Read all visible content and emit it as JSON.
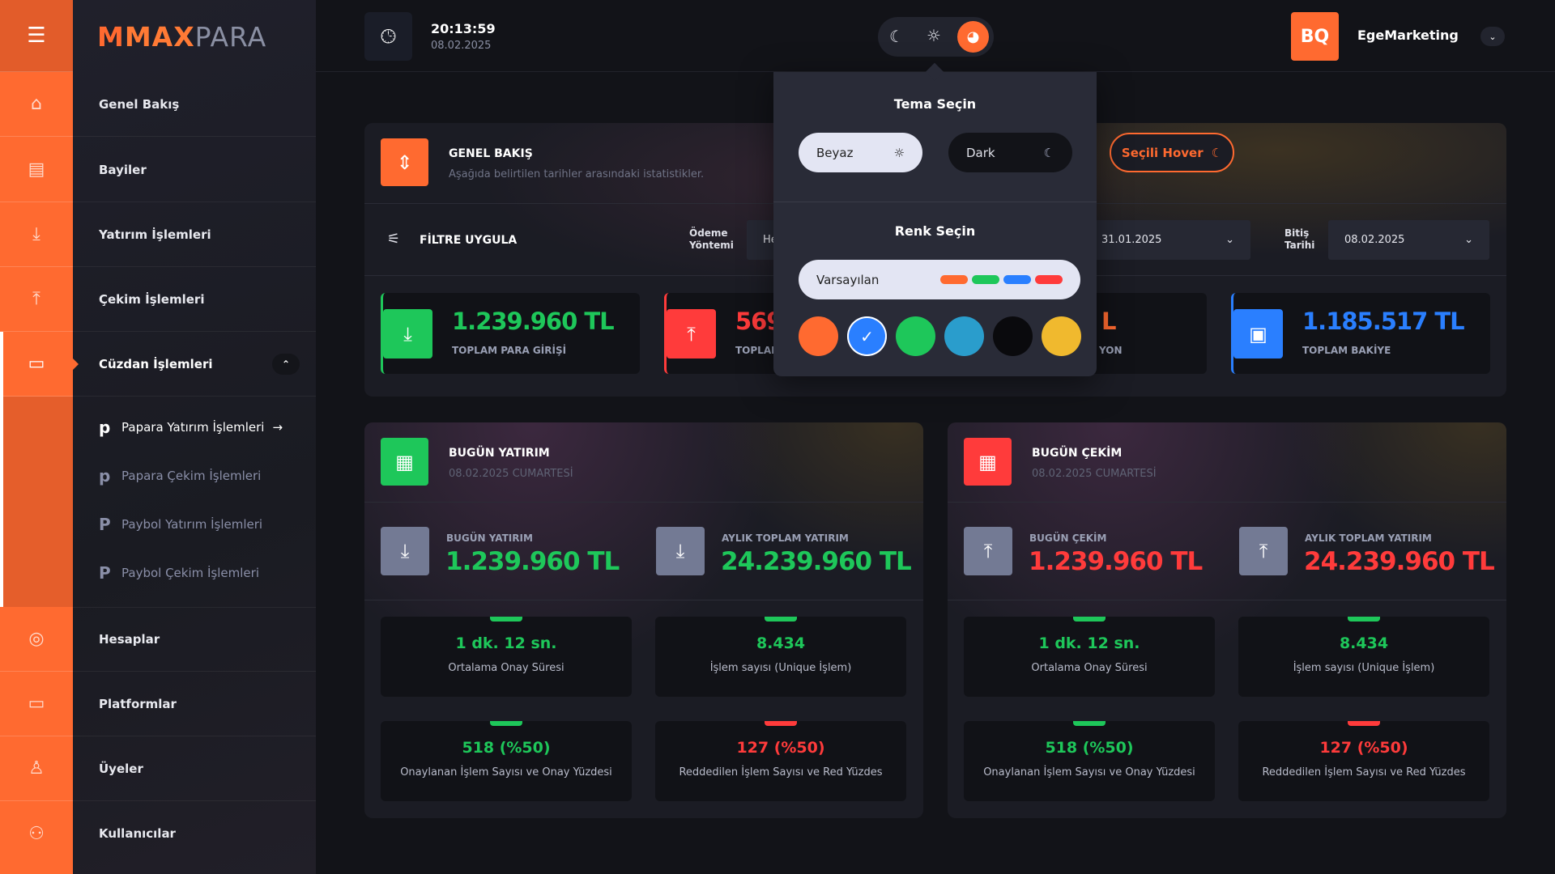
{
  "brand": {
    "logo_strong": "MAX",
    "logo_light": "PARA"
  },
  "clock": {
    "time": "20:13:59",
    "date": "08.02.2025"
  },
  "user": {
    "initials": "BQ",
    "name": "EgeMarketing"
  },
  "sidebar": {
    "items": [
      {
        "label": "Genel Bakış",
        "icon": "home-icon"
      },
      {
        "label": "Bayiler",
        "icon": "store-icon"
      },
      {
        "label": "Yatırım İşlemleri",
        "icon": "download-icon"
      },
      {
        "label": "Çekim İşlemleri",
        "icon": "upload-icon"
      },
      {
        "label": "Cüzdan İşlemleri",
        "icon": "wallet-icon",
        "active": true,
        "expanded": true
      },
      {
        "label": "Hesaplar",
        "icon": "user-circle-icon"
      },
      {
        "label": "Platformlar",
        "icon": "monitor-icon"
      },
      {
        "label": "Üyeler",
        "icon": "user-icon"
      },
      {
        "label": "Kullanıcılar",
        "icon": "users-icon"
      }
    ],
    "subitems": [
      {
        "label": "Papara Yatırım İşlemleri",
        "mark": "p",
        "active": true
      },
      {
        "label": "Papara Çekim İşlemleri",
        "mark": "p"
      },
      {
        "label": "Paybol Yatırım İşlemleri",
        "mark": "P"
      },
      {
        "label": "Paybol Çekim İşlemleri",
        "mark": "P"
      }
    ]
  },
  "overview": {
    "title": "GENEL BAKIŞ",
    "subtitle": "Aşağıda belirtilen tarihler arasındaki istatistikler.",
    "filter_label": "FİLTRE UYGULA",
    "payment_label_1": "Ödeme",
    "payment_label_2": "Yöntemi",
    "payment_value": "He",
    "start_value": "31.01.2025",
    "end_label_1": "Bitiş",
    "end_label_2": "Tarihi",
    "end_value": "08.02.2025",
    "cards": [
      {
        "value": "1.239.960 TL",
        "label": "TOPLAM PARA GİRİŞİ",
        "color": "#1ec75a"
      },
      {
        "value": "569",
        "label": "TOPLAM",
        "color": "#ff3b3b"
      },
      {
        "value": "L",
        "label": "YON",
        "color": "#ff6a30"
      },
      {
        "value": "1.185.517 TL",
        "label": "TOPLAM BAKİYE",
        "color": "#2a7fff"
      }
    ]
  },
  "theme_popup": {
    "title": "Tema Seçin",
    "light": "Beyaz",
    "dark": "Dark",
    "hover": "Seçili Hover",
    "color_title": "Renk Seçin",
    "default": "Varsayılan",
    "default_swatches": [
      "#ff6a30",
      "#1ec75a",
      "#2a7fff",
      "#ff3b3b"
    ],
    "colors": [
      "#ff6a30",
      "#2a7fff",
      "#1ec75a",
      "#2a9dcc",
      "#0a0a0d",
      "#f0b92e"
    ],
    "selected_color": 1
  },
  "panels": [
    {
      "title": "BUGÜN YATIRIM",
      "date": "08.02.2025 CUMARTESİ",
      "color": "#1ec75a",
      "today_label": "BUGÜN YATIRIM",
      "today_value": "1.239.960 TL",
      "month_label": "AYLIK TOPLAM YATIRIM",
      "month_value": "24.239.960 TL",
      "stats": [
        {
          "value": "1 dk. 12 sn.",
          "label": "Ortalama Onay Süresi",
          "color": "#1ec75a"
        },
        {
          "value": "8.434",
          "label": "İşlem sayısı (Unique İşlem)",
          "color": "#1ec75a"
        },
        {
          "value": "518 (%50)",
          "label": "Onaylanan İşlem Sayısı ve Onay Yüzdesi",
          "color": "#1ec75a"
        },
        {
          "value": "127 (%50)",
          "label": "Reddedilen İşlem Sayısı ve Red Yüzdes",
          "color": "#ff3b3b"
        }
      ]
    },
    {
      "title": "BUGÜN ÇEKİM",
      "date": "08.02.2025 CUMARTESİ",
      "color": "#ff3b3b",
      "today_label": "BUGÜN ÇEKİM",
      "today_value": "1.239.960 TL",
      "month_label": "AYLIK TOPLAM YATIRIM",
      "month_value": "24.239.960 TL",
      "stats": [
        {
          "value": "1 dk. 12 sn.",
          "label": "Ortalama Onay Süresi",
          "color": "#1ec75a"
        },
        {
          "value": "8.434",
          "label": "İşlem sayısı (Unique İşlem)",
          "color": "#1ec75a"
        },
        {
          "value": "518 (%50)",
          "label": "Onaylanan İşlem Sayısı ve Onay Yüzdesi",
          "color": "#1ec75a"
        },
        {
          "value": "127 (%50)",
          "label": "Reddedilen İşlem Sayısı ve Red Yüzdes",
          "color": "#ff3b3b"
        }
      ]
    }
  ]
}
